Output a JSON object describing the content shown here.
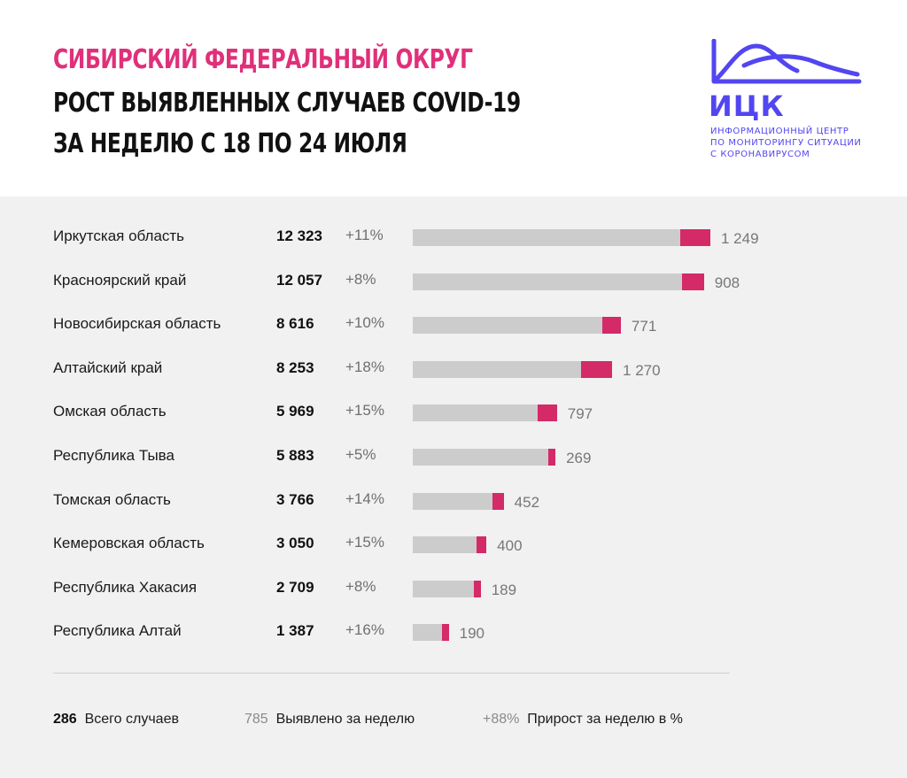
{
  "header": {
    "title_line1": "Сибирский федеральный округ",
    "title_line2": "Рост выявленных случаев COVID-19",
    "title_line3": "за неделю с 18 по 24 июля"
  },
  "logo": {
    "abbr": "ИЦК",
    "caption_line1": "Информационный центр",
    "caption_line2": "по мониторингу ситуации",
    "caption_line3": "с коронавирусом"
  },
  "colors": {
    "title_accent": "#e0307a",
    "logo": "#5246f0",
    "bar_base": "#cccccc",
    "bar_new": "#d42a67",
    "panel_bg": "#f1f1f1"
  },
  "chart_data": {
    "type": "bar",
    "orientation": "horizontal",
    "stacked": true,
    "categories": [
      "Иркутская область",
      "Красноярский край",
      "Новосибирская область",
      "Алтайский край",
      "Омская область",
      "Республика Тыва",
      "Томская область",
      "Кемеровская область",
      "Республика Хакасия",
      "Республика Алтай"
    ],
    "totals": [
      12323,
      12057,
      8616,
      8253,
      5969,
      5883,
      3766,
      3050,
      2709,
      1387
    ],
    "totals_labels": [
      "12 323",
      "12 057",
      "8 616",
      "8 253",
      "5 969",
      "5 883",
      "3 766",
      "3 050",
      "2 709",
      "1 387"
    ],
    "growth_labels": [
      "+11%",
      "+8%",
      "+10%",
      "+18%",
      "+15%",
      "+5%",
      "+14%",
      "+15%",
      "+8%",
      "+16%"
    ],
    "new_cases": [
      1249,
      908,
      771,
      1270,
      797,
      269,
      452,
      400,
      189,
      190
    ],
    "new_cases_labels": [
      "1 249",
      "908",
      "771",
      "1 270",
      "797",
      "269",
      "452",
      "400",
      "189",
      "190"
    ],
    "series": [
      {
        "values": [
          11074,
          11149,
          7845,
          6983,
          5172,
          5614,
          3314,
          2650,
          2520,
          1197
        ]
      },
      {
        "values": [
          1249,
          908,
          771,
          1270,
          797,
          269,
          452,
          400,
          189,
          190
        ]
      }
    ],
    "xlim": [
      0,
      12323
    ]
  },
  "legend": {
    "total_value": "286",
    "total_label": "Всего случаев",
    "new_value": "785",
    "new_label": "Выявлено за неделю",
    "growth_value": "+88%",
    "growth_label": "Прирост за неделю в %"
  }
}
